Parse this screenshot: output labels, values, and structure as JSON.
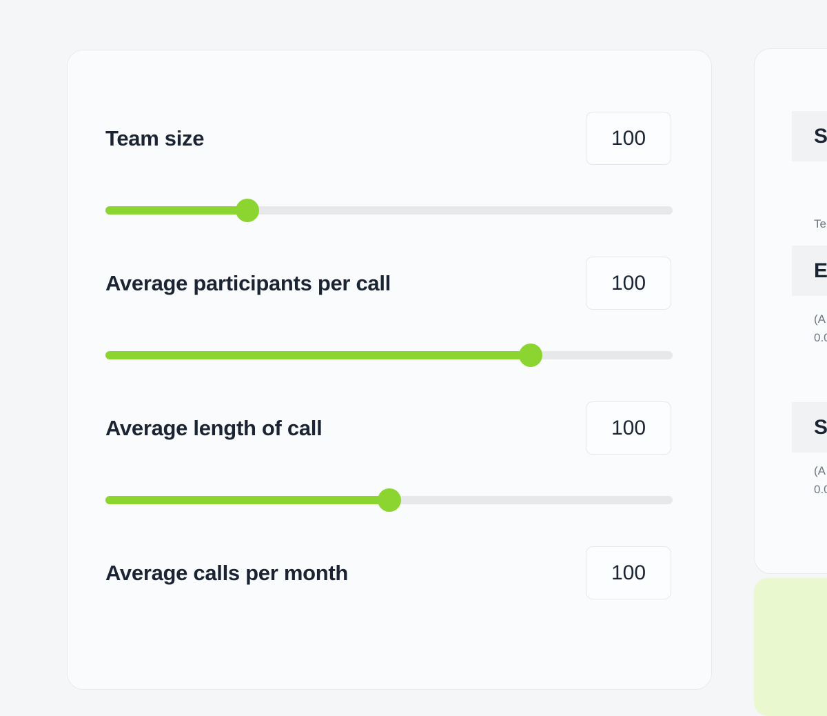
{
  "calculator": {
    "rows": [
      {
        "label": "Team size",
        "value": "100",
        "slider_percent": 25
      },
      {
        "label": "Average participants per call",
        "value": "100",
        "slider_percent": 75
      },
      {
        "label": "Average length of call",
        "value": "100",
        "slider_percent": 50
      },
      {
        "label": "Average calls per month",
        "value": "100",
        "slider_percent": null
      }
    ]
  },
  "summary": {
    "sections": [
      {
        "heading": "S",
        "text": "Te"
      },
      {
        "heading": "E",
        "text": "(A\n0.0"
      },
      {
        "heading": "S",
        "text": "(A\n0.0"
      }
    ]
  },
  "colors": {
    "accent_green": "#8cd42f",
    "pale_green": "#eaf8cf",
    "track_gray": "#e7e8ea",
    "card_background": "#fafbfd",
    "page_background": "#f5f6f8",
    "section_gray": "#f1f2f4",
    "text_dark": "#1b2433",
    "text_secondary": "#6e7681"
  }
}
